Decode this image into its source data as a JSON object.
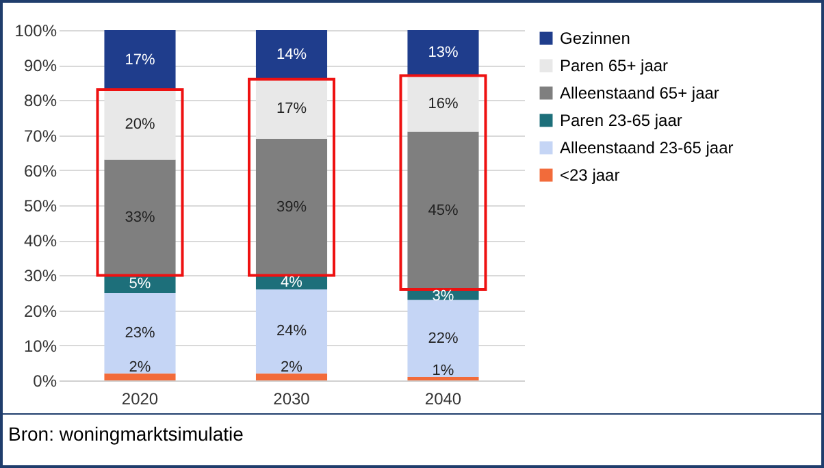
{
  "chart_data": {
    "type": "bar",
    "stacked": true,
    "categories": [
      "2020",
      "2030",
      "2040"
    ],
    "series": [
      {
        "name": "<23 jaar",
        "color": "#f26b3a",
        "values": [
          2,
          2,
          1
        ],
        "value_labels": [
          "2%",
          "2%",
          "1%"
        ]
      },
      {
        "name": "Alleenstaand 23-65 jaar",
        "color": "#c5d5f5",
        "values": [
          23,
          24,
          22
        ],
        "value_labels": [
          "23%",
          "24%",
          "22%"
        ]
      },
      {
        "name": "Paren 23-65 jaar",
        "color": "#1d6f7a",
        "values": [
          5,
          4,
          3
        ],
        "value_labels": [
          "5%",
          "4%",
          "3%"
        ]
      },
      {
        "name": "Alleenstaand 65+ jaar",
        "color": "#7f7f7f",
        "values": [
          33,
          39,
          45
        ],
        "value_labels": [
          "33%",
          "39%",
          "45%"
        ]
      },
      {
        "name": "Paren 65+ jaar",
        "color": "#e8e8e8",
        "values": [
          20,
          17,
          16
        ],
        "value_labels": [
          "20%",
          "17%",
          "16%"
        ]
      },
      {
        "name": "Gezinnen",
        "color": "#1f3d8c",
        "values": [
          17,
          14,
          13
        ],
        "value_labels": [
          "17%",
          "14%",
          "13%"
        ]
      }
    ],
    "ylim": [
      0,
      100
    ],
    "yticks": [
      {
        "value": 0,
        "label": "0%"
      },
      {
        "value": 10,
        "label": "10%"
      },
      {
        "value": 20,
        "label": "20%"
      },
      {
        "value": 30,
        "label": "30%"
      },
      {
        "value": 40,
        "label": "40%"
      },
      {
        "value": 50,
        "label": "50%"
      },
      {
        "value": 60,
        "label": "60%"
      },
      {
        "value": 70,
        "label": "70%"
      },
      {
        "value": 80,
        "label": "80%"
      },
      {
        "value": 90,
        "label": "90%"
      },
      {
        "value": 100,
        "label": "100%"
      }
    ],
    "grid": true,
    "legend": "right",
    "annotations": [
      "Bron: woningmarktsimulatie"
    ]
  }
}
